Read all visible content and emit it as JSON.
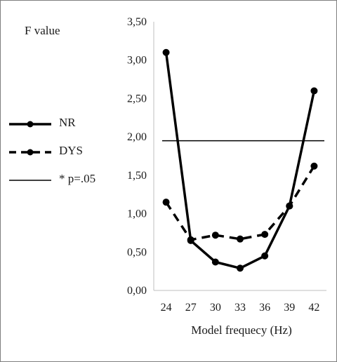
{
  "chart_data": {
    "type": "line",
    "title": "",
    "ylabel": "F value",
    "xlabel": "Model frequecy (Hz)",
    "categories": [
      "24",
      "27",
      "30",
      "33",
      "36",
      "39",
      "42"
    ],
    "ylim": [
      0,
      3.5
    ],
    "yticks": [
      "0,00",
      "0,50",
      "1,00",
      "1,50",
      "2,00",
      "2,50",
      "3,00",
      "3,50"
    ],
    "yticks_values": [
      0,
      0.5,
      1.0,
      1.5,
      2.0,
      2.5,
      3.0,
      3.5
    ],
    "series": [
      {
        "name": "NR",
        "style": "solid",
        "values": [
          3.1,
          0.65,
          0.37,
          0.29,
          0.45,
          1.1,
          2.6
        ]
      },
      {
        "name": "DYS",
        "style": "dashed",
        "values": [
          1.15,
          0.66,
          0.72,
          0.67,
          0.73,
          1.1,
          1.62
        ]
      }
    ],
    "reference_line": {
      "name": "* p=.05",
      "value": 1.95
    },
    "grid": false,
    "legend_position": "left",
    "colors": {
      "line": "#000000",
      "text": "#1a1a1a",
      "axis": "#bfbfbf"
    }
  }
}
